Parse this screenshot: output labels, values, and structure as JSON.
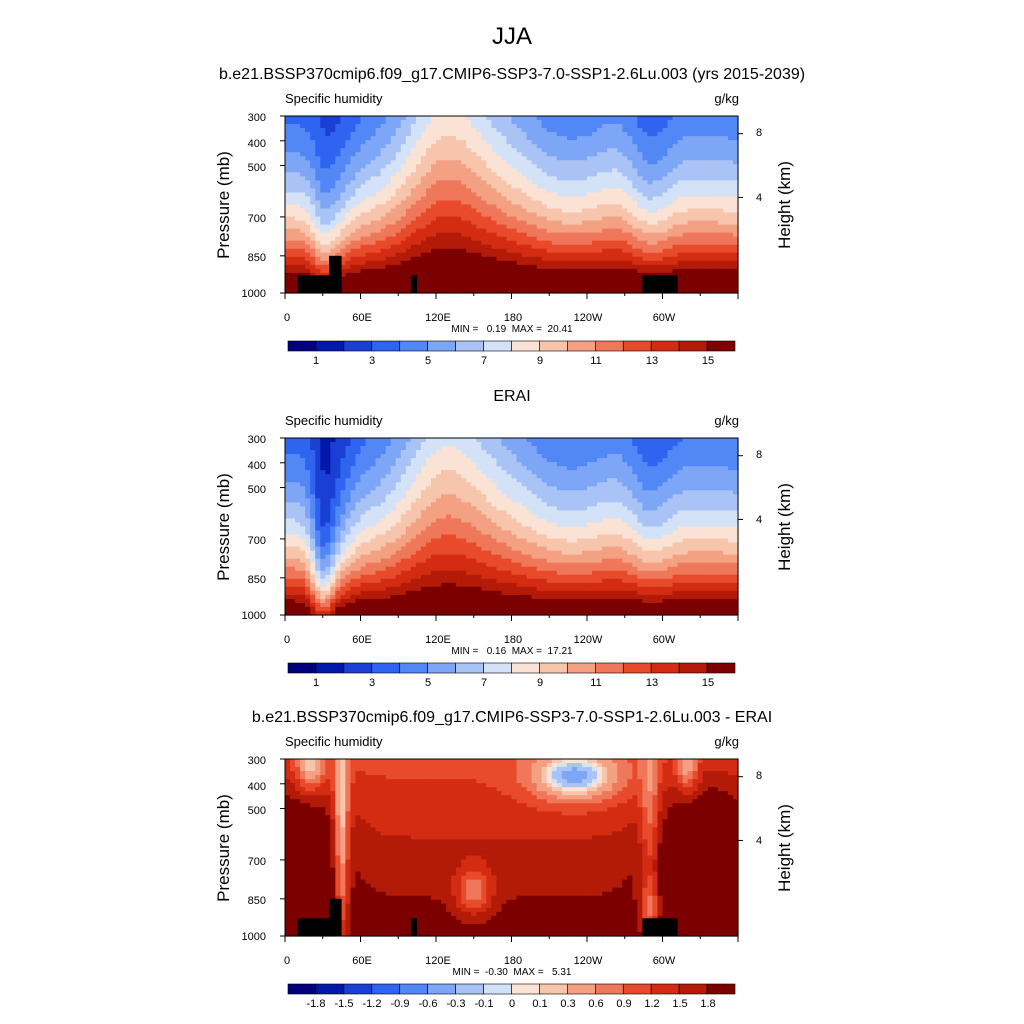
{
  "page": {
    "season": "JJA",
    "colors": {
      "landmask": "#000000",
      "abs_palette": [
        "#00007a",
        "#0018aa",
        "#1a3fd4",
        "#2e64f0",
        "#5287f6",
        "#7ea6f7",
        "#a9c3f6",
        "#d3e2f7",
        "#fae3d4",
        "#f7c4ac",
        "#f4a082",
        "#ef775a",
        "#e84a2c",
        "#d42c12",
        "#b31a08",
        "#7d0000"
      ],
      "diff_palette": [
        "#00007a",
        "#0018aa",
        "#1a3fd4",
        "#2e64f0",
        "#5287f6",
        "#7ea6f7",
        "#a9c3f6",
        "#d3e2f7",
        "#fae3d4",
        "#f7c4ac",
        "#f4a082",
        "#ef775a",
        "#e84a2c",
        "#d42c12",
        "#b31a08",
        "#7d0000"
      ]
    }
  },
  "chart_data": [
    {
      "type": "heatmap",
      "title": "b.e21.BSSP370cmip6.f09_g17.CMIP6-SSP3-7.0-SSP1-2.6Lu.003 (yrs 2015-2039)",
      "left_string": "Specific humidity",
      "right_string": "g/kg",
      "ylabel": "Pressure (mb)",
      "ylabel_right": "Height (km)",
      "yticks": [
        "300",
        "400",
        "500",
        "700",
        "850",
        "1000"
      ],
      "yticks_right": [
        "8",
        "4"
      ],
      "xticks": [
        "0",
        "60E",
        "120E",
        "180",
        "120W",
        "60W"
      ],
      "stats": "MIN =   0.19  MAX =  20.41",
      "colorbar_labels": [
        "1",
        "3",
        "5",
        "7",
        "9",
        "11",
        "13",
        "15"
      ],
      "field": "model"
    },
    {
      "type": "heatmap",
      "title": "ERAI",
      "left_string": "Specific humidity",
      "right_string": "g/kg",
      "ylabel": "Pressure (mb)",
      "ylabel_right": "Height (km)",
      "yticks": [
        "300",
        "400",
        "500",
        "700",
        "850",
        "1000"
      ],
      "yticks_right": [
        "8",
        "4"
      ],
      "xticks": [
        "0",
        "60E",
        "120E",
        "180",
        "120W",
        "60W"
      ],
      "stats": "MIN =   0.16  MAX =  17.21",
      "colorbar_labels": [
        "1",
        "3",
        "5",
        "7",
        "9",
        "11",
        "13",
        "15"
      ],
      "field": "obs"
    },
    {
      "type": "heatmap",
      "title": "b.e21.BSSP370cmip6.f09_g17.CMIP6-SSP3-7.0-SSP1-2.6Lu.003 - ERAI",
      "left_string": "Specific humidity",
      "right_string": "g/kg",
      "ylabel": "Pressure (mb)",
      "ylabel_right": "Height (km)",
      "yticks": [
        "300",
        "400",
        "500",
        "700",
        "850",
        "1000"
      ],
      "yticks_right": [
        "8",
        "4"
      ],
      "xticks": [
        "0",
        "60E",
        "120E",
        "180",
        "120W",
        "60W"
      ],
      "stats": "MIN =  -0.30  MAX =   5.31",
      "colorbar_labels": [
        "-1.8",
        "-1.5",
        "-1.2",
        "-0.9",
        "-0.6",
        "-0.3",
        "-0.1",
        "0",
        "0.1",
        "0.3",
        "0.6",
        "0.9",
        "1.2",
        "1.5",
        "1.8"
      ],
      "field": "diff"
    }
  ]
}
